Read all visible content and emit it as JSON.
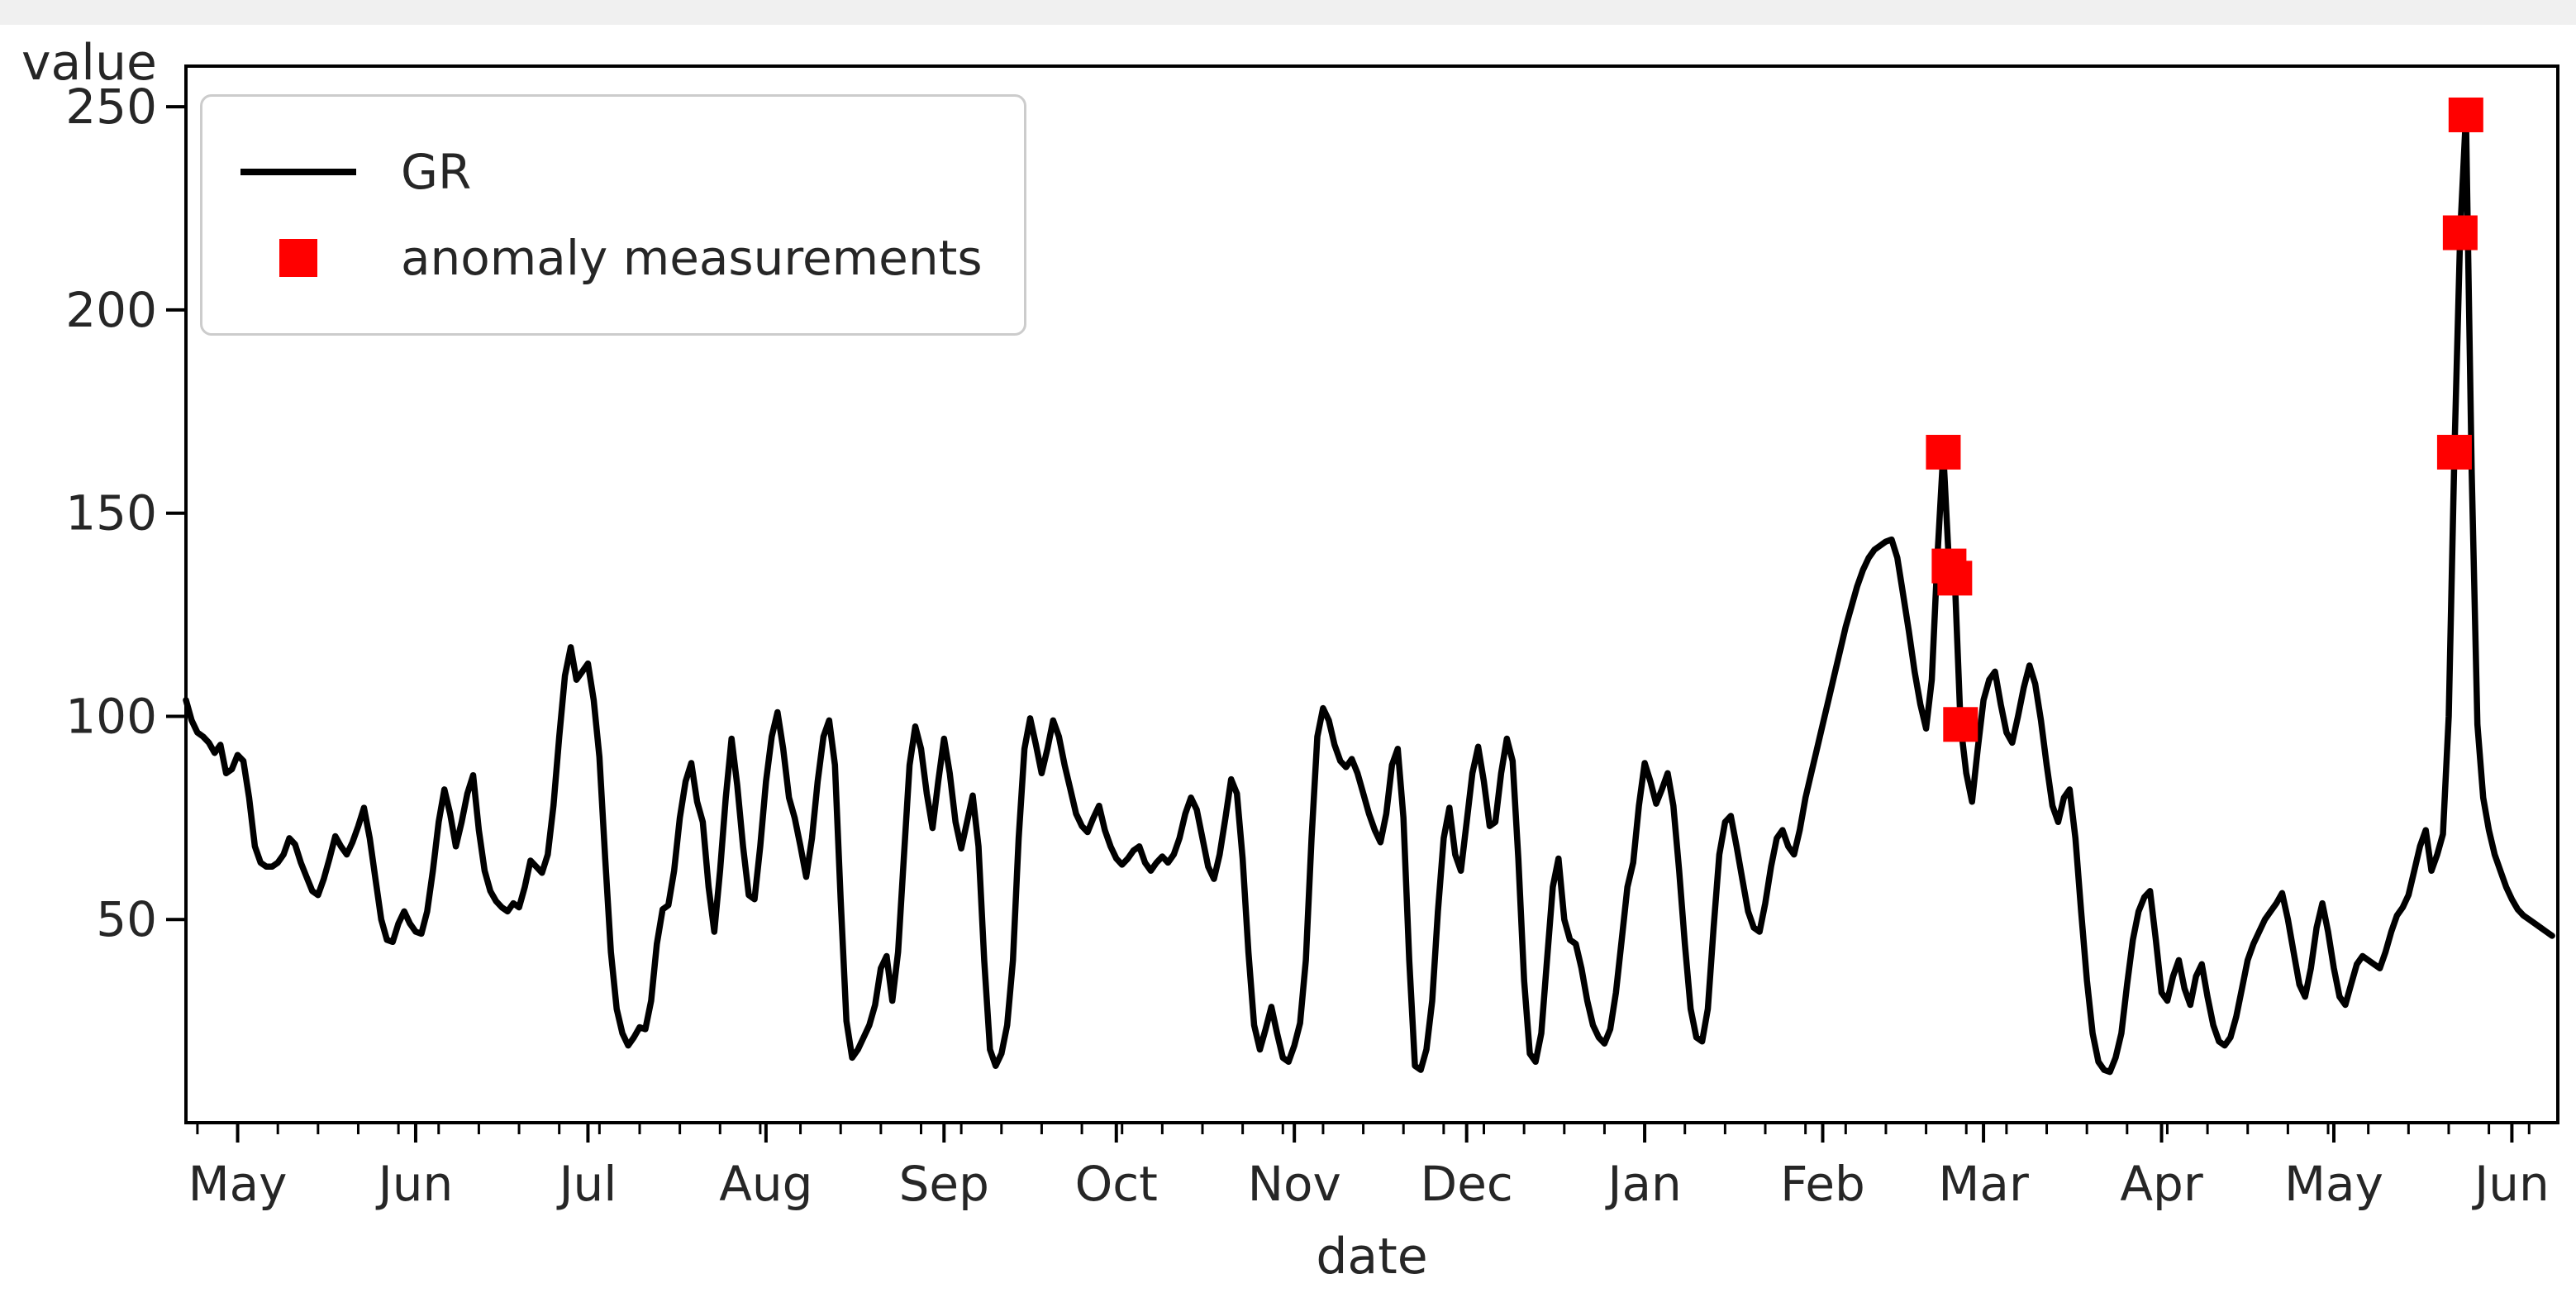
{
  "figure": {
    "background": "#ffffff",
    "top_edge_color": "#f0f0f0"
  },
  "chart_data": {
    "type": "line",
    "title": "",
    "xlabel": "date",
    "ylabel": "value",
    "grid": false,
    "ylim": [
      0,
      260
    ],
    "y_ticks": [
      50,
      100,
      150,
      200,
      250
    ],
    "x_tick_labels": [
      "May",
      "Jun",
      "Jul",
      "Aug",
      "Sep",
      "Oct",
      "Nov",
      "Dec",
      "Jan",
      "Feb",
      "Mar",
      "Apr",
      "May",
      "Jun"
    ],
    "xlim_dates": [
      "2016-04-22",
      "2017-06-09"
    ],
    "minor_tick_frequency": "weekly",
    "legend": {
      "position": "upper-left",
      "items": [
        {
          "label": "GR",
          "type": "line",
          "color": "#000000"
        },
        {
          "label": "anomaly measurements",
          "type": "square",
          "color": "#ff0000"
        }
      ]
    },
    "line_color": "#000000",
    "anomaly_color": "#ff0000",
    "series": [
      {
        "name": "GR",
        "color": "#000000",
        "start_date": "2016-04-22",
        "frequency": "daily",
        "values": [
          104,
          99,
          96,
          95,
          93.5,
          91,
          93,
          86,
          87,
          90.5,
          89,
          80,
          68,
          64,
          63,
          63,
          64,
          66,
          70,
          68.5,
          64,
          60.5,
          57,
          56,
          60,
          65,
          70.5,
          68,
          66,
          69,
          73,
          77.5,
          70,
          60,
          50,
          45,
          44.5,
          49,
          52,
          49,
          47,
          46.5,
          52,
          62,
          74,
          82,
          76,
          68,
          74,
          81,
          85.5,
          72,
          62,
          57,
          54.5,
          53,
          52,
          54,
          53,
          58,
          64.5,
          63,
          61.5,
          66,
          78,
          95,
          110,
          117,
          109,
          111,
          113,
          104,
          90,
          65,
          42,
          28,
          22,
          19,
          21,
          23.5,
          23,
          30,
          44,
          52.5,
          53.5,
          62,
          75,
          84,
          88.5,
          79,
          74,
          58,
          47,
          62,
          80,
          94.5,
          83,
          68,
          56,
          55,
          68,
          84,
          95,
          101,
          92,
          80,
          75,
          68,
          60.5,
          70,
          84,
          95,
          99,
          88,
          55,
          25,
          16,
          18,
          21,
          24,
          29,
          38,
          41,
          30,
          42,
          65,
          88,
          97.5,
          92,
          81,
          72.5,
          84,
          94.5,
          86,
          74,
          67.5,
          74,
          80.5,
          68,
          40,
          18,
          14,
          17,
          24,
          40,
          70,
          92,
          99.5,
          93,
          86,
          92,
          99,
          95,
          88,
          82,
          76,
          73,
          71.5,
          75,
          78,
          72,
          68,
          65,
          63.5,
          65,
          67,
          68,
          64,
          62,
          64,
          65.5,
          64,
          66,
          70,
          76,
          80,
          77,
          70,
          63,
          60,
          66,
          75,
          84.5,
          81,
          65,
          42,
          24,
          18,
          23,
          28.5,
          22,
          16,
          15,
          19,
          24.5,
          40,
          70,
          95,
          102,
          99,
          93,
          89,
          87.5,
          89.5,
          86,
          81,
          76,
          72,
          69,
          76,
          88,
          92,
          75,
          40,
          14,
          13,
          18,
          30,
          52,
          70,
          77.5,
          66,
          62,
          74,
          86,
          92.5,
          84,
          73,
          74,
          86,
          94.5,
          89,
          65,
          35,
          17,
          15,
          22,
          40,
          58,
          65,
          50,
          45,
          44,
          38,
          30,
          24,
          21,
          19.5,
          23,
          32,
          45,
          58,
          64,
          78,
          88.5,
          84,
          78.5,
          82,
          86,
          78,
          62,
          44,
          28,
          21,
          20,
          28,
          48,
          66,
          74,
          75.5,
          68,
          60,
          52,
          48,
          47,
          54,
          63,
          70,
          72,
          68,
          66,
          72,
          80,
          86,
          92,
          98,
          104,
          110,
          116,
          122,
          127,
          132,
          136,
          139,
          141,
          142,
          143,
          143.5,
          139,
          130,
          121,
          111,
          103,
          97,
          109,
          140,
          165,
          137,
          134,
          98,
          86,
          79,
          92,
          104,
          109,
          111,
          103,
          96,
          93.5,
          100,
          107,
          112.5,
          108,
          99,
          88,
          78,
          74,
          80,
          82,
          70,
          52,
          35,
          22,
          15,
          13,
          12.5,
          16,
          22,
          34,
          45,
          52,
          55.5,
          57,
          45,
          32,
          30,
          36,
          40,
          33,
          29,
          36,
          39,
          31,
          24,
          20,
          19,
          21,
          26,
          33,
          40,
          44,
          47,
          50,
          52,
          54,
          56.5,
          50,
          42,
          34,
          31,
          38,
          48,
          54,
          47,
          38,
          31,
          29,
          34,
          39,
          41,
          40,
          39,
          38,
          42,
          47,
          51,
          53,
          56,
          62,
          68,
          72,
          62,
          66,
          71,
          100,
          165,
          219,
          248,
          160,
          98,
          80,
          72,
          66,
          62,
          58,
          55,
          52.5,
          51,
          50,
          49,
          48,
          47,
          46
        ]
      }
    ],
    "anomalies": {
      "name": "anomaly measurements",
      "color": "#ff0000",
      "marker": "square",
      "points": [
        [
          "2017-02-22",
          165
        ],
        [
          "2017-02-23",
          137
        ],
        [
          "2017-02-24",
          134
        ],
        [
          "2017-02-25",
          98
        ],
        [
          "2017-05-22",
          165
        ],
        [
          "2017-05-23",
          219
        ],
        [
          "2017-05-24",
          248
        ]
      ]
    }
  }
}
